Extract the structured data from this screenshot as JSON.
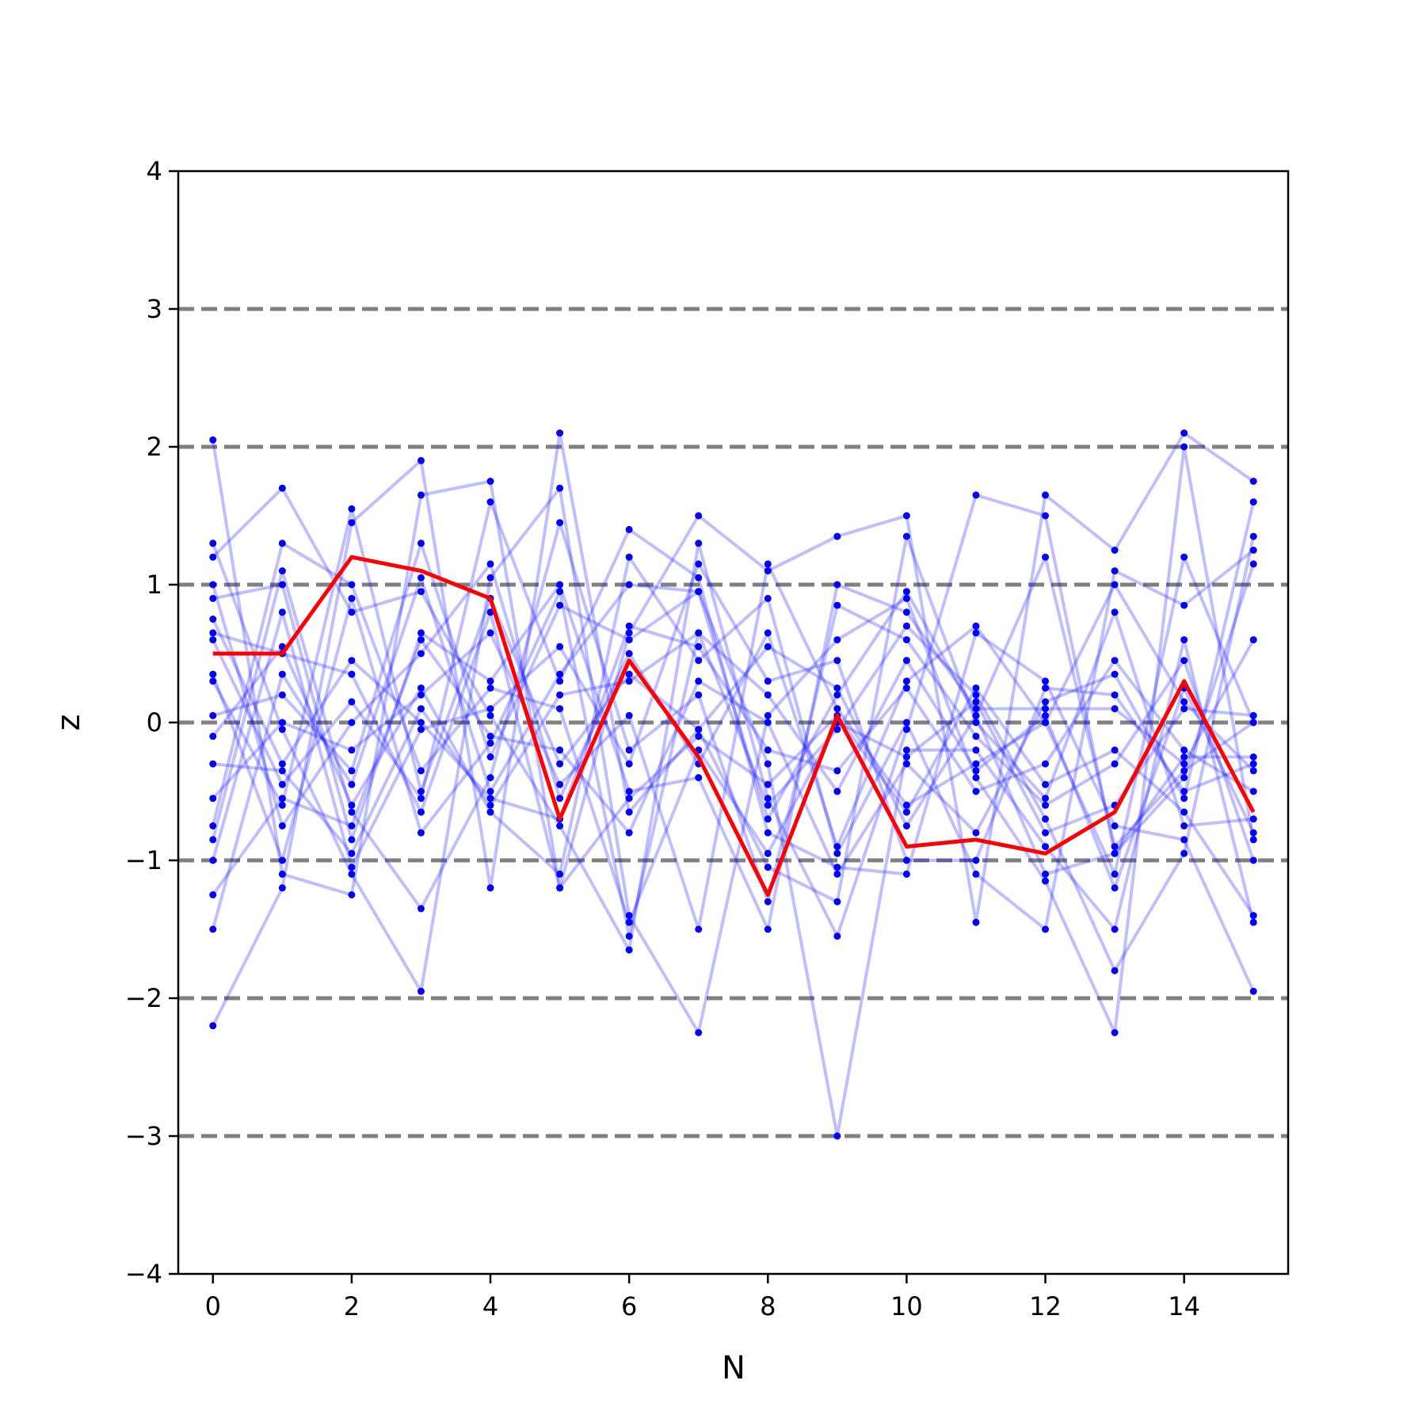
{
  "chart_data": {
    "type": "line",
    "xlabel": "N",
    "ylabel": "z",
    "xlim": [
      -0.5,
      15.5
    ],
    "ylim": [
      -4,
      4
    ],
    "xticks": [
      0,
      2,
      4,
      6,
      8,
      10,
      12,
      14
    ],
    "yticks": [
      -4,
      -3,
      -2,
      -1,
      0,
      1,
      2,
      3,
      4
    ],
    "xtick_labels": [
      "0",
      "2",
      "4",
      "6",
      "8",
      "10",
      "12",
      "14"
    ],
    "ytick_labels": [
      "−4",
      "−3",
      "−2",
      "−1",
      "0",
      "1",
      "2",
      "3",
      "4"
    ],
    "reference_lines": [
      -3,
      -2,
      -1,
      0,
      1,
      2,
      3
    ],
    "reference_line_color": "#808080",
    "trajectory_color": "#0000ff",
    "highlight_color": "#ff0000",
    "x": [
      0,
      1,
      2,
      3,
      4,
      5,
      6,
      7,
      8,
      9,
      10,
      11,
      12,
      13,
      14,
      15
    ],
    "trajectories": [
      [
        2.05,
        -1.1,
        -1.25,
        1.65,
        1.75,
        -1.2,
        0.65,
        1.5,
        1.1,
        1.35,
        1.5,
        -1.45,
        1.65,
        1.25,
        2.1,
        1.75
      ],
      [
        -2.2,
        -1.2,
        1.45,
        1.9,
        -1.2,
        2.1,
        -0.65,
        -0.05,
        -1.05,
        -1.3,
        1.35,
        0.0,
        -0.55,
        0.8,
        -0.75,
        -0.7
      ],
      [
        1.3,
        -0.05,
        -1.1,
        -1.95,
        1.05,
        1.7,
        -1.4,
        -2.25,
        0.05,
        0.6,
        0.9,
        -0.4,
        -1.15,
        -2.25,
        2.0,
        -0.85
      ],
      [
        1.2,
        1.7,
        0.8,
        0.95,
        0.05,
        -0.75,
        -1.65,
        1.3,
        -0.55,
        -1.55,
        -0.05,
        1.65,
        1.5,
        -0.95,
        -0.4,
        1.15
      ],
      [
        -1.5,
        0.35,
        -0.45,
        1.05,
        -0.5,
        0.35,
        1.0,
        0.95,
        -0.3,
        -3.0,
        -0.2,
        -0.2,
        -0.9,
        -1.5,
        0.6,
        -1.45
      ],
      [
        0.9,
        1.0,
        -0.85,
        0.65,
        0.3,
        1.0,
        -0.5,
        -0.4,
        -1.5,
        1.0,
        0.8,
        0.1,
        0.1,
        0.1,
        -0.3,
        0.6
      ],
      [
        0.6,
        -0.45,
        0.15,
        -0.55,
        1.6,
        0.3,
        1.4,
        1.05,
        -0.8,
        -1.05,
        -1.1,
        0.65,
        0.3,
        -0.75,
        -0.85,
        -1.95
      ],
      [
        -0.1,
        0.55,
        -0.6,
        0.25,
        -0.65,
        -1.1,
        1.2,
        0.45,
        0.9,
        -0.95,
        0.0,
        -1.1,
        -1.5,
        1.1,
        0.85,
        1.25
      ],
      [
        0.3,
        -0.6,
        1.55,
        -0.5,
        0.9,
        -0.3,
        0.35,
        -0.05,
        0.55,
        0.25,
        -0.75,
        0.05,
        1.2,
        -0.9,
        -0.35,
        0.0
      ],
      [
        -0.85,
        1.1,
        -0.65,
        -1.35,
        -0.4,
        1.45,
        -0.2,
        0.2,
        -1.3,
        0.85,
        0.6,
        -0.1,
        -0.6,
        -0.3,
        0.45,
        -1.0
      ],
      [
        1.0,
        -0.75,
        0.0,
        0.5,
        1.15,
        -0.55,
        0.5,
        -0.3,
        0.65,
        -0.9,
        0.3,
        0.7,
        0.0,
        -1.1,
        1.2,
        0.0
      ],
      [
        -1.0,
        0.8,
        -1.05,
        -0.05,
        0.1,
        0.55,
        -0.3,
        1.15,
        0.3,
        0.45,
        -1.0,
        -1.0,
        0.25,
        0.2,
        -0.5,
        -0.3
      ],
      [
        0.35,
        -1.0,
        0.9,
        -0.8,
        -0.15,
        0.95,
        -1.55,
        0.65,
        -0.6,
        -0.05,
        0.7,
        0.2,
        -0.7,
        -1.8,
        -0.95,
        1.35
      ],
      [
        -0.55,
        0.0,
        -0.2,
        0.2,
        0.65,
        -0.45,
        0.05,
        -1.5,
        1.15,
        0.1,
        -0.6,
        -0.3,
        0.0,
        1.0,
        0.15,
        -0.35
      ],
      [
        0.75,
        -0.3,
        0.45,
        0.0,
        -0.55,
        -0.7,
        0.7,
        0.55,
        -0.2,
        -0.35,
        0.25,
        -0.5,
        -0.3,
        0.45,
        -0.2,
        -0.5
      ],
      [
        -0.75,
        1.3,
        1.0,
        -0.35,
        0.25,
        0.1,
        -1.45,
        -0.2,
        -0.95,
        0.0,
        -0.25,
        0.15,
        -0.8,
        -0.6,
        0.1,
        0.05
      ],
      [
        0.05,
        0.2,
        -0.35,
        1.3,
        -0.25,
        0.85,
        0.6,
        0.95,
        -0.7,
        0.2,
        0.95,
        0.05,
        -1.1,
        -0.95,
        -0.25,
        -0.25
      ],
      [
        -1.25,
        -0.55,
        -0.75,
        0.6,
        -0.1,
        -0.2,
        -0.8,
        0.3,
        0.0,
        -1.1,
        -0.3,
        -0.8,
        0.15,
        0.35,
        -0.55,
        1.6
      ],
      [
        0.65,
        0.5,
        0.35,
        -0.65,
        0.8,
        -1.2,
        -0.55,
        -0.1,
        -0.45,
        0.05,
        -0.65,
        0.25,
        -0.45,
        -0.2,
        -0.65,
        -1.4
      ],
      [
        -0.3,
        -0.35,
        -0.95,
        0.1,
        -0.6,
        0.2,
        0.3,
        0.65,
        0.2,
        -0.5,
        0.45,
        -0.35,
        0.05,
        -1.2,
        0.25,
        -0.8
      ]
    ],
    "highlight": [
      0.5,
      0.5,
      1.2,
      1.1,
      0.9,
      -0.7,
      0.45,
      -0.25,
      -1.25,
      0.05,
      -0.9,
      -0.85,
      -0.95,
      -0.65,
      0.3,
      -0.65
    ]
  }
}
